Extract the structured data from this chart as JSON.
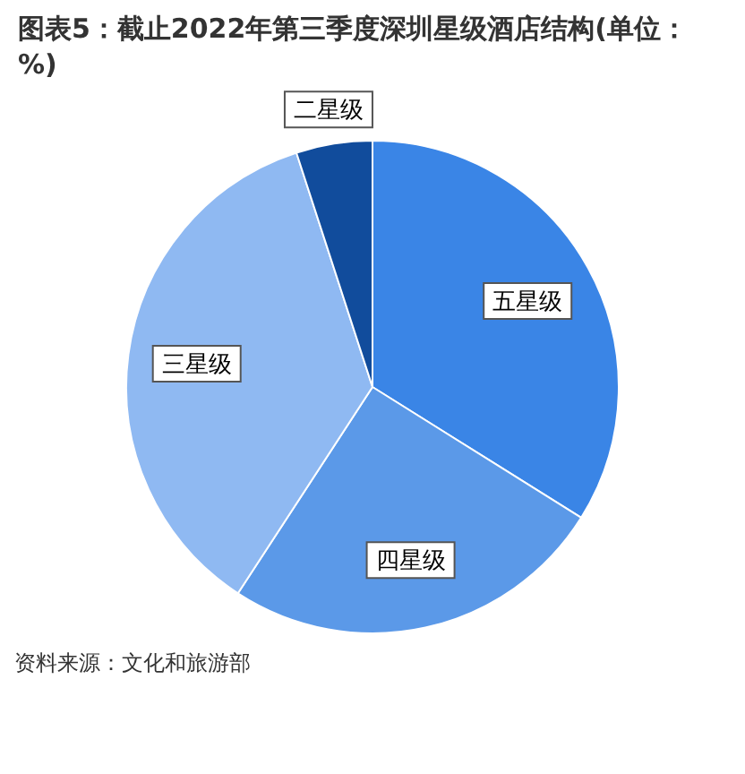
{
  "chart_data": {
    "type": "pie",
    "title": "图表5：截止2022年第三季度深圳星级酒店结构(单位：%)",
    "categories": [
      "五星级",
      "四星级",
      "三星级",
      "二星级"
    ],
    "values": [
      33.9,
      25.3,
      35.8,
      5.0
    ],
    "colors": [
      "#3a85e6",
      "#5b99e8",
      "#8fb9f2",
      "#114c9c"
    ],
    "legend": false,
    "annotations": [
      "资料来源：文化和旅游部"
    ]
  }
}
